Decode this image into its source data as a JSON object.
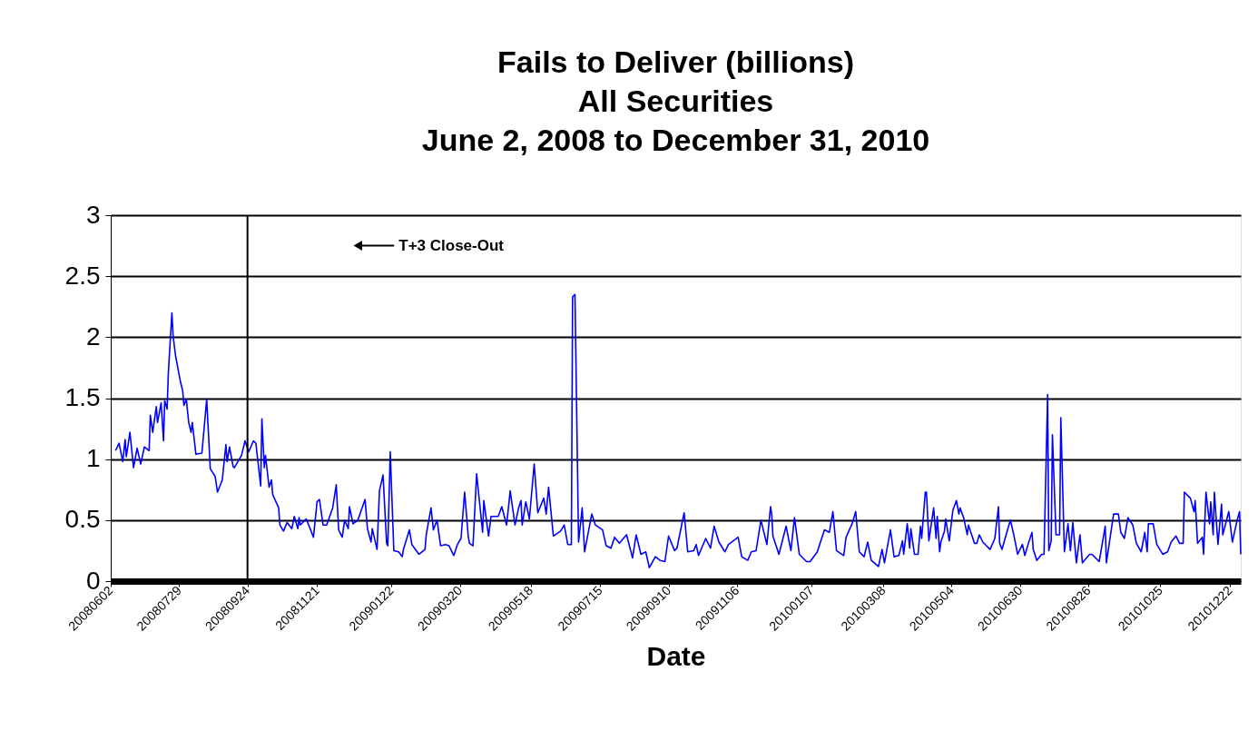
{
  "chart_data": {
    "type": "line",
    "title": [
      "Fails to Deliver (billions)",
      "All Securities",
      "June 2, 2008 to December 31, 2010"
    ],
    "xlabel": "Date",
    "x": [
      "2008-06-06",
      "2008-06-09",
      "2008-06-12",
      "2008-06-14",
      "2008-06-15",
      "2008-06-18",
      "2008-06-21",
      "2008-06-24",
      "2008-06-27",
      "2008-06-30",
      "2008-07-04",
      "2008-07-05",
      "2008-07-07",
      "2008-07-10",
      "2008-07-11",
      "2008-07-14",
      "2008-07-16",
      "2008-07-17",
      "2008-07-19",
      "2008-07-20",
      "2008-07-23",
      "2008-07-24",
      "2008-07-26",
      "2008-07-30",
      "2008-08-01",
      "2008-08-02",
      "2008-08-04",
      "2008-08-06",
      "2008-08-08",
      "2008-08-09",
      "2008-08-12",
      "2008-08-17",
      "2008-08-21",
      "2008-08-24",
      "2008-08-28",
      "2008-08-30",
      "2008-09-03",
      "2008-09-06",
      "2008-09-07",
      "2008-09-09",
      "2008-09-12",
      "2008-09-13",
      "2008-09-19",
      "2008-09-22",
      "2008-09-25",
      "2008-09-29",
      "2008-10-01",
      "2008-10-05",
      "2008-10-06",
      "2008-10-08",
      "2008-10-09",
      "2008-10-12",
      "2008-10-14",
      "2008-10-15",
      "2008-10-20",
      "2008-10-21",
      "2008-10-24",
      "2008-10-27",
      "2008-10-31",
      "2008-11-02",
      "2008-11-05",
      "2008-11-06",
      "2008-11-07",
      "2008-11-12",
      "2008-11-18",
      "2008-11-21",
      "2008-11-23",
      "2008-11-26",
      "2008-11-29",
      "2008-12-04",
      "2008-12-07",
      "2008-12-09",
      "2008-12-12",
      "2008-12-14",
      "2008-12-17",
      "2008-12-18",
      "2008-12-21",
      "2008-12-25",
      "2008-12-31",
      "2009-01-02",
      "2009-01-05",
      "2009-01-06",
      "2009-01-10",
      "2009-01-12",
      "2009-01-15",
      "2009-01-18",
      "2009-01-19",
      "2009-01-21",
      "2009-01-24",
      "2009-01-28",
      "2009-01-31",
      "2009-02-01",
      "2009-02-06",
      "2009-02-08",
      "2009-02-14",
      "2009-02-19",
      "2009-02-20",
      "2009-02-24",
      "2009-02-26",
      "2009-03-01",
      "2009-03-04",
      "2009-03-08",
      "2009-03-11",
      "2009-03-15",
      "2009-03-18",
      "2009-03-21",
      "2009-03-24",
      "2009-03-27",
      "2009-03-28",
      "2009-03-31",
      "2009-04-03",
      "2009-04-08",
      "2009-04-09",
      "2009-04-13",
      "2009-04-15",
      "2009-04-21",
      "2009-04-24",
      "2009-04-28",
      "2009-05-01",
      "2009-05-05",
      "2009-05-08",
      "2009-05-10",
      "2009-05-11",
      "2009-05-14",
      "2009-05-17",
      "2009-05-21",
      "2009-05-24",
      "2009-05-29",
      "2009-05-31",
      "2009-06-02",
      "2009-06-06",
      "2009-06-12",
      "2009-06-15",
      "2009-06-18",
      "2009-06-21",
      "2009-06-22",
      "2009-06-24",
      "2009-06-27",
      "2009-06-30",
      "2009-07-02",
      "2009-07-08",
      "2009-07-11",
      "2009-07-17",
      "2009-07-20",
      "2009-07-24",
      "2009-07-27",
      "2009-07-31",
      "2009-08-06",
      "2009-08-11",
      "2009-08-14",
      "2009-08-18",
      "2009-08-22",
      "2009-08-25",
      "2009-08-30",
      "2009-09-03",
      "2009-09-07",
      "2009-09-10",
      "2009-09-15",
      "2009-09-17",
      "2009-09-23",
      "2009-09-26",
      "2009-10-01",
      "2009-10-03",
      "2009-10-05",
      "2009-10-11",
      "2009-10-15",
      "2009-10-18",
      "2009-10-22",
      "2009-10-27",
      "2009-10-30",
      "2009-11-07",
      "2009-11-10",
      "2009-11-15",
      "2009-11-18",
      "2009-11-22",
      "2009-11-26",
      "2009-12-01",
      "2009-12-04",
      "2009-12-05",
      "2009-12-06",
      "2009-12-11",
      "2009-12-17",
      "2009-12-21",
      "2009-12-24",
      "2009-12-28",
      "2010-01-03",
      "2010-01-06",
      "2010-01-12",
      "2010-01-18",
      "2010-01-22",
      "2010-01-25",
      "2010-01-28",
      "2010-02-03",
      "2010-02-05",
      "2010-02-10",
      "2010-02-13",
      "2010-02-16",
      "2010-02-20",
      "2010-02-23",
      "2010-02-26",
      "2010-03-04",
      "2010-03-07",
      "2010-03-09",
      "2010-03-14",
      "2010-03-17",
      "2010-03-21",
      "2010-03-24",
      "2010-03-25",
      "2010-03-28",
      "2010-03-30",
      "2010-03-31",
      "2010-04-03",
      "2010-04-06",
      "2010-04-08",
      "2010-04-09",
      "2010-04-12",
      "2010-04-13",
      "2010-04-15",
      "2010-04-19",
      "2010-04-21",
      "2010-04-22",
      "2010-04-24",
      "2010-04-25",
      "2010-04-28",
      "2010-04-29",
      "2010-05-02",
      "2010-05-05",
      "2010-05-08",
      "2010-05-10",
      "2010-05-11",
      "2010-05-14",
      "2010-05-17",
      "2010-05-18",
      "2010-05-23",
      "2010-05-25",
      "2010-05-27",
      "2010-05-30",
      "2010-06-05",
      "2010-06-09",
      "2010-06-12",
      "2010-06-13",
      "2010-06-15",
      "2010-06-19",
      "2010-06-22",
      "2010-06-25",
      "2010-06-28",
      "2010-07-02",
      "2010-07-04",
      "2010-07-07",
      "2010-07-10",
      "2010-07-11",
      "2010-07-14",
      "2010-07-18",
      "2010-07-20",
      "2010-07-23",
      "2010-07-24",
      "2010-07-26",
      "2010-07-27",
      "2010-07-30",
      "2010-08-02",
      "2010-08-03",
      "2010-08-06",
      "2010-08-09",
      "2010-08-11",
      "2010-08-13",
      "2010-08-16",
      "2010-08-19",
      "2010-08-21",
      "2010-08-27",
      "2010-08-29",
      "2010-09-04",
      "2010-09-09",
      "2010-09-10",
      "2010-09-16",
      "2010-09-20",
      "2010-09-22",
      "2010-09-25",
      "2010-09-28",
      "2010-10-02",
      "2010-10-05",
      "2010-10-09",
      "2010-10-12",
      "2010-10-14",
      "2010-10-15",
      "2010-10-19",
      "2010-10-22",
      "2010-10-27",
      "2010-10-31",
      "2010-11-03",
      "2010-11-07",
      "2010-11-10",
      "2010-11-13",
      "2010-11-14",
      "2010-11-19",
      "2010-11-22",
      "2010-11-23",
      "2010-11-25",
      "2010-11-29",
      "2010-11-30",
      "2010-12-02",
      "2010-12-05",
      "2010-12-06",
      "2010-12-08",
      "2010-12-09",
      "2010-12-12",
      "2010-12-15",
      "2010-12-16",
      "2010-12-21",
      "2010-12-24",
      "2010-12-28",
      "2010-12-30",
      "2010-12-31"
    ],
    "series": [
      {
        "color": "#0000ff",
        "values": [
          1.07,
          1.13,
          0.98,
          1.16,
          1.02,
          1.22,
          0.93,
          1.09,
          0.96,
          1.1,
          1.07,
          1.36,
          1.22,
          1.43,
          1.3,
          1.46,
          1.15,
          1.48,
          1.41,
          1.7,
          2.2,
          2.01,
          1.85,
          1.64,
          1.56,
          1.44,
          1.49,
          1.3,
          1.22,
          1.3,
          1.04,
          1.05,
          1.49,
          0.92,
          0.86,
          0.73,
          0.83,
          1.12,
          0.98,
          1.1,
          0.94,
          0.93,
          1.03,
          1.15,
          1.06,
          1.15,
          1.13,
          0.78,
          1.33,
          0.93,
          1.03,
          0.77,
          0.83,
          0.71,
          0.6,
          0.46,
          0.41,
          0.48,
          0.43,
          0.53,
          0.43,
          0.52,
          0.46,
          0.51,
          0.36,
          0.65,
          0.67,
          0.46,
          0.46,
          0.6,
          0.79,
          0.42,
          0.36,
          0.5,
          0.43,
          0.61,
          0.47,
          0.5,
          0.67,
          0.43,
          0.32,
          0.43,
          0.26,
          0.74,
          0.87,
          0.31,
          0.29,
          1.06,
          0.25,
          0.24,
          0.2,
          0.26,
          0.42,
          0.3,
          0.22,
          0.26,
          0.38,
          0.6,
          0.42,
          0.5,
          0.29,
          0.3,
          0.29,
          0.21,
          0.3,
          0.35,
          0.73,
          0.37,
          0.31,
          0.29,
          0.88,
          0.4,
          0.66,
          0.37,
          0.53,
          0.53,
          0.61,
          0.46,
          0.74,
          0.46,
          0.6,
          0.66,
          0.46,
          0.65,
          0.51,
          0.96,
          0.56,
          0.68,
          0.55,
          0.77,
          0.37,
          0.41,
          0.46,
          0.3,
          0.3,
          2.33,
          2.35,
          0.32,
          0.6,
          0.24,
          0.55,
          0.46,
          0.42,
          0.29,
          0.27,
          0.36,
          0.31,
          0.38,
          0.19,
          0.38,
          0.22,
          0.24,
          0.11,
          0.2,
          0.17,
          0.16,
          0.37,
          0.25,
          0.27,
          0.56,
          0.24,
          0.25,
          0.3,
          0.21,
          0.35,
          0.27,
          0.45,
          0.32,
          0.24,
          0.3,
          0.36,
          0.2,
          0.17,
          0.24,
          0.25,
          0.5,
          0.3,
          0.61,
          0.55,
          0.37,
          0.22,
          0.45,
          0.25,
          0.52,
          0.22,
          0.16,
          0.16,
          0.24,
          0.42,
          0.4,
          0.57,
          0.25,
          0.21,
          0.36,
          0.47,
          0.57,
          0.24,
          0.2,
          0.32,
          0.17,
          0.12,
          0.26,
          0.15,
          0.42,
          0.2,
          0.21,
          0.33,
          0.22,
          0.47,
          0.27,
          0.43,
          0.22,
          0.22,
          0.45,
          0.35,
          0.73,
          0.73,
          0.33,
          0.6,
          0.35,
          0.53,
          0.24,
          0.32,
          0.41,
          0.51,
          0.33,
          0.58,
          0.66,
          0.55,
          0.6,
          0.52,
          0.38,
          0.46,
          0.31,
          0.31,
          0.38,
          0.32,
          0.26,
          0.35,
          0.61,
          0.31,
          0.26,
          0.4,
          0.5,
          0.37,
          0.22,
          0.3,
          0.21,
          0.31,
          0.4,
          0.26,
          0.17,
          0.22,
          0.22,
          1.53,
          0.25,
          0.33,
          1.2,
          0.38,
          0.38,
          1.34,
          0.24,
          0.47,
          0.25,
          0.48,
          0.15,
          0.38,
          0.15,
          0.22,
          0.22,
          0.16,
          0.45,
          0.15,
          0.55,
          0.55,
          0.4,
          0.35,
          0.52,
          0.46,
          0.31,
          0.24,
          0.4,
          0.24,
          0.47,
          0.47,
          0.3,
          0.22,
          0.24,
          0.32,
          0.37,
          0.31,
          0.31,
          0.73,
          0.68,
          0.57,
          0.66,
          0.31,
          0.36,
          0.22,
          0.73,
          0.47,
          0.65,
          0.38,
          0.73,
          0.3,
          0.63,
          0.38,
          0.57,
          0.32,
          0.5,
          0.57,
          0.22
        ]
      }
    ],
    "xlim": [
      "2008-06-02",
      "2010-12-31"
    ],
    "xticks": [
      {
        "value": "2008-06-02",
        "label": "20080602"
      },
      {
        "value": "2008-07-29",
        "label": "20080729"
      },
      {
        "value": "2008-09-24",
        "label": "20080924"
      },
      {
        "value": "2008-11-21",
        "label": "20081121"
      },
      {
        "value": "2009-01-22",
        "label": "20090122"
      },
      {
        "value": "2009-03-20",
        "label": "20090320"
      },
      {
        "value": "2009-05-18",
        "label": "20090518"
      },
      {
        "value": "2009-07-15",
        "label": "20090715"
      },
      {
        "value": "2009-09-10",
        "label": "20090910"
      },
      {
        "value": "2009-11-06",
        "label": "20091106"
      },
      {
        "value": "2010-01-07",
        "label": "20100107"
      },
      {
        "value": "2010-03-08",
        "label": "20100308"
      },
      {
        "value": "2010-05-04",
        "label": "20100504"
      },
      {
        "value": "2010-06-30",
        "label": "20100630"
      },
      {
        "value": "2010-08-26",
        "label": "20100826"
      },
      {
        "value": "2010-10-25",
        "label": "20101025"
      },
      {
        "value": "2010-12-22",
        "label": "20101222"
      }
    ],
    "ylim": [
      0,
      3
    ],
    "yticks": [
      0,
      0.5,
      1,
      1.5,
      2,
      2.5,
      3
    ],
    "grid": "y",
    "legend": false,
    "marker": "none",
    "line_style": "solid",
    "ref_lines": [
      {
        "axis": "x",
        "value": "2008-09-24",
        "color": "#000000"
      }
    ],
    "annotations": [
      {
        "text": "T+3 Close-Out",
        "x": "2008-12-25",
        "y": 2.75
      }
    ]
  }
}
